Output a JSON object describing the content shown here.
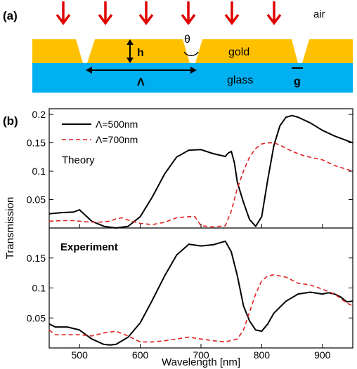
{
  "panel_a": {
    "label": "(a)",
    "air_label": "air",
    "gold_label": "gold",
    "glass_label": "glass",
    "h_label": "h",
    "theta_label": "θ",
    "lambda_label": "Λ",
    "g_label": "g",
    "colors": {
      "gold": "#ffc000",
      "glass": "#00b0f0",
      "arrow": "#e00000"
    },
    "arrow_count": 6
  },
  "panel_b": {
    "label": "(b)"
  },
  "chart_data": {
    "type": "line",
    "xlabel": "Wavelength [nm]",
    "ylabel": "Transmission",
    "xlim": [
      450,
      950
    ],
    "xticks": [
      500,
      600,
      700,
      800,
      900
    ],
    "legend": {
      "placement": "top-left",
      "entries": [
        {
          "label": "Λ=500nm",
          "color": "#000000",
          "style": "solid"
        },
        {
          "label": "Λ=700nm",
          "color": "#e02020",
          "style": "dashed"
        }
      ]
    },
    "subplots": [
      {
        "name": "Theory",
        "annotation": "Theory",
        "ylim": [
          0,
          0.21
        ],
        "yticks": [
          0.05,
          0.1,
          0.15,
          0.2
        ],
        "yticklabels": [
          "0.05",
          "0.1",
          "0.15",
          "0.2"
        ],
        "series": [
          {
            "name": "Λ=500nm",
            "color": "#000000",
            "dash": false,
            "x": [
              450,
              470,
              490,
              500,
              510,
              520,
              540,
              560,
              580,
              600,
              620,
              640,
              660,
              680,
              700,
              720,
              740,
              745,
              750,
              755,
              760,
              770,
              780,
              790,
              800,
              810,
              820,
              830,
              840,
              850,
              860,
              880,
              900,
              920,
              950
            ],
            "y": [
              0.025,
              0.027,
              0.028,
              0.032,
              0.022,
              0.012,
              0.003,
              0.0,
              0.003,
              0.02,
              0.055,
              0.095,
              0.125,
              0.137,
              0.138,
              0.131,
              0.126,
              0.132,
              0.135,
              0.115,
              0.08,
              0.045,
              0.015,
              0.003,
              0.02,
              0.085,
              0.145,
              0.18,
              0.195,
              0.198,
              0.195,
              0.185,
              0.172,
              0.162,
              0.15
            ]
          },
          {
            "name": "Λ=700nm",
            "color": "#e02020",
            "dash": true,
            "x": [
              450,
              470,
              490,
              510,
              530,
              550,
              560,
              570,
              580,
              600,
              620,
              640,
              660,
              680,
              690,
              700,
              720,
              740,
              750,
              760,
              770,
              780,
              790,
              800,
              810,
              820,
              830,
              850,
              870,
              900,
              920,
              950
            ],
            "y": [
              0.012,
              0.013,
              0.013,
              0.011,
              0.01,
              0.012,
              0.016,
              0.018,
              0.014,
              0.008,
              0.006,
              0.01,
              0.018,
              0.02,
              0.02,
              0.004,
              0.002,
              0.004,
              0.03,
              0.07,
              0.1,
              0.125,
              0.14,
              0.148,
              0.15,
              0.15,
              0.146,
              0.135,
              0.127,
              0.12,
              0.11,
              0.1
            ]
          }
        ]
      },
      {
        "name": "Experiment",
        "annotation": "Experiment",
        "ylim": [
          0,
          0.2
        ],
        "yticks": [
          0.05,
          0.1,
          0.15
        ],
        "yticklabels": [
          "0.05",
          "0.1",
          "0.15"
        ],
        "series": [
          {
            "name": "Λ=500nm",
            "color": "#000000",
            "dash": false,
            "x": [
              450,
              460,
              480,
              500,
              520,
              540,
              550,
              560,
              580,
              600,
              620,
              640,
              660,
              680,
              700,
              720,
              740,
              750,
              760,
              770,
              780,
              790,
              800,
              810,
              820,
              840,
              860,
              880,
              900,
              910,
              920,
              930,
              940,
              950
            ],
            "y": [
              0.04,
              0.035,
              0.035,
              0.03,
              0.015,
              0.006,
              0.005,
              0.006,
              0.018,
              0.042,
              0.08,
              0.12,
              0.155,
              0.173,
              0.17,
              0.172,
              0.178,
              0.16,
              0.12,
              0.07,
              0.045,
              0.03,
              0.028,
              0.04,
              0.058,
              0.078,
              0.09,
              0.093,
              0.09,
              0.092,
              0.09,
              0.085,
              0.077,
              0.078
            ]
          },
          {
            "name": "Λ=700nm",
            "color": "#e02020",
            "dash": true,
            "x": [
              450,
              460,
              480,
              500,
              520,
              540,
              560,
              580,
              600,
              620,
              640,
              660,
              680,
              700,
              720,
              740,
              760,
              770,
              780,
              790,
              800,
              810,
              820,
              830,
              840,
              860,
              880,
              900,
              920,
              940,
              950
            ],
            "y": [
              0.03,
              0.022,
              0.022,
              0.022,
              0.02,
              0.025,
              0.028,
              0.02,
              0.01,
              0.01,
              0.012,
              0.015,
              0.018,
              0.015,
              0.012,
              0.01,
              0.015,
              0.03,
              0.06,
              0.09,
              0.112,
              0.12,
              0.122,
              0.12,
              0.118,
              0.108,
              0.105,
              0.098,
              0.09,
              0.075,
              0.07
            ]
          }
        ]
      }
    ]
  }
}
